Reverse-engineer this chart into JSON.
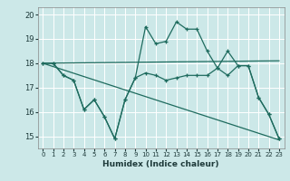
{
  "title": "",
  "xlabel": "Humidex (Indice chaleur)",
  "ylabel": "",
  "bg_color": "#cce8e8",
  "grid_color": "#ffffff",
  "line_color": "#1e6b5e",
  "xlim": [
    -0.5,
    23.5
  ],
  "ylim": [
    14.5,
    20.3
  ],
  "yticks": [
    15,
    16,
    17,
    18,
    19,
    20
  ],
  "xticks": [
    0,
    1,
    2,
    3,
    4,
    5,
    6,
    7,
    8,
    9,
    10,
    11,
    12,
    13,
    14,
    15,
    16,
    17,
    18,
    19,
    20,
    21,
    22,
    23
  ],
  "series1_x": [
    0,
    1,
    2,
    3,
    4,
    5,
    6,
    7,
    8,
    9,
    10,
    11,
    12,
    13,
    14,
    15,
    16,
    17,
    18,
    19,
    20,
    21,
    22,
    23
  ],
  "series1_y": [
    18.0,
    18.0,
    17.5,
    17.3,
    16.1,
    16.5,
    15.8,
    14.9,
    16.5,
    17.4,
    19.5,
    18.8,
    18.9,
    19.7,
    19.4,
    19.4,
    18.5,
    17.8,
    18.5,
    17.9,
    17.9,
    16.6,
    15.9,
    14.9
  ],
  "series2_x": [
    0,
    1,
    2,
    3,
    4,
    5,
    6,
    7,
    8,
    9,
    10,
    11,
    12,
    13,
    14,
    15,
    16,
    17,
    18,
    19,
    20,
    21,
    22,
    23
  ],
  "series2_y": [
    18.0,
    18.0,
    17.5,
    17.3,
    16.1,
    16.5,
    15.8,
    14.9,
    16.5,
    17.4,
    17.6,
    17.5,
    17.3,
    17.4,
    17.5,
    17.5,
    17.5,
    17.8,
    17.5,
    17.9,
    17.9,
    16.6,
    15.9,
    14.9
  ],
  "trend1_x": [
    0,
    23
  ],
  "trend1_y": [
    18.0,
    18.1
  ],
  "trend2_x": [
    0,
    23
  ],
  "trend2_y": [
    18.0,
    14.85
  ]
}
